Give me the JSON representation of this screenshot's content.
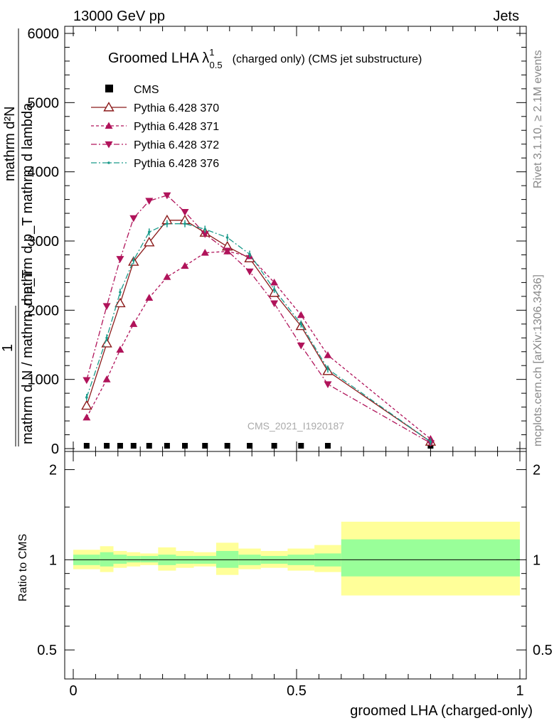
{
  "header": {
    "left": "13000 GeV pp",
    "right": "Jets"
  },
  "side_labels": {
    "rivet": "Rivet 3.1.10, ≥ 2.1M events",
    "mcplots": "mcplots.cern.ch [arXiv:1306.3436]"
  },
  "chart_data": [
    {
      "type": "line",
      "title_main": "Groomed LHA λ",
      "title_sup": "1",
      "title_sub": "0.5",
      "title_rest": "(charged only) (CMS jet substructure)",
      "ylabel_numerator": "mathrm d²N",
      "ylabel_numerator_2": "mathrm d p_T mathrm d lambda",
      "ylabel_prefix": "1",
      "ylabel_denominator": "mathrm d N / mathrm d p_T",
      "ylim": [
        0,
        6200
      ],
      "y_ticks": [
        {
          "v": 0,
          "label": "0"
        },
        {
          "v": 1000,
          "label": "1000"
        },
        {
          "v": 2000,
          "label": "2000"
        },
        {
          "v": 3000,
          "label": "3000"
        },
        {
          "v": 4000,
          "label": "4000"
        },
        {
          "v": 5000,
          "label": "5000"
        },
        {
          "v": 6000,
          "label": "6000"
        }
      ],
      "xlim": [
        0,
        1
      ],
      "watermark": "CMS_2021_I1920187",
      "legend_position": "top-left",
      "x": [
        0.03,
        0.075,
        0.105,
        0.135,
        0.17,
        0.21,
        0.25,
        0.295,
        0.345,
        0.395,
        0.45,
        0.51,
        0.57,
        0.8
      ],
      "series": [
        {
          "name": "CMS",
          "color": "#000000",
          "style": "square",
          "values": [
            0,
            0,
            0,
            0,
            0,
            0,
            0,
            0,
            0,
            0,
            0,
            0,
            0,
            0
          ]
        },
        {
          "name": "Pythia 6.428 370",
          "color": "#8b1a1a",
          "style": "open-triangle-up-solid",
          "values": [
            620,
            1520,
            2100,
            2700,
            2980,
            3300,
            3300,
            3120,
            2920,
            2750,
            2250,
            1770,
            1120,
            100
          ]
        },
        {
          "name": "Pythia 6.428 371",
          "color": "#b0135a",
          "style": "filled-triangle-up-dashed",
          "values": [
            450,
            1000,
            1430,
            1800,
            2180,
            2480,
            2640,
            2830,
            2850,
            2780,
            2400,
            1930,
            1350,
            140
          ]
        },
        {
          "name": "Pythia 6.428 372",
          "color": "#b0135a",
          "style": "filled-triangle-down-dashdot",
          "values": [
            990,
            2060,
            2740,
            3330,
            3580,
            3660,
            3420,
            3100,
            2860,
            2560,
            2100,
            1490,
            930,
            80
          ]
        },
        {
          "name": "Pythia 6.428 376",
          "color": "#1a9a8a",
          "style": "dot-dashdot",
          "values": [
            740,
            1600,
            2260,
            2720,
            3130,
            3250,
            3250,
            3170,
            3050,
            2810,
            2300,
            1800,
            1150,
            100
          ]
        }
      ]
    },
    {
      "type": "area",
      "ylabel": "Ratio to CMS",
      "xlabel": "groomed LHA (charged-only)",
      "ylim": [
        0.4,
        2.3
      ],
      "y_scale": "log",
      "y_ticks": [
        {
          "v": 0.5,
          "label": "0.5"
        },
        {
          "v": 1,
          "label": "1"
        },
        {
          "v": 2,
          "label": "2"
        }
      ],
      "x_ticks": [
        {
          "v": 0,
          "label": "0"
        },
        {
          "v": 0.5,
          "label": "0.5"
        },
        {
          "v": 1,
          "label": "1"
        }
      ],
      "bin_edges": [
        0,
        0.06,
        0.09,
        0.12,
        0.15,
        0.19,
        0.23,
        0.27,
        0.32,
        0.37,
        0.42,
        0.48,
        0.54,
        0.6,
        1.0
      ],
      "stat_band": [
        [
          0.96,
          1.04
        ],
        [
          0.95,
          1.06
        ],
        [
          0.97,
          1.04
        ],
        [
          0.98,
          1.03
        ],
        [
          0.98,
          1.03
        ],
        [
          0.96,
          1.04
        ],
        [
          0.97,
          1.03
        ],
        [
          0.97,
          1.03
        ],
        [
          0.94,
          1.07
        ],
        [
          0.96,
          1.04
        ],
        [
          0.97,
          1.03
        ],
        [
          0.96,
          1.04
        ],
        [
          0.95,
          1.05
        ],
        [
          0.88,
          1.17
        ]
      ],
      "total_band": [
        [
          0.93,
          1.08
        ],
        [
          0.91,
          1.11
        ],
        [
          0.94,
          1.07
        ],
        [
          0.95,
          1.06
        ],
        [
          0.96,
          1.05
        ],
        [
          0.92,
          1.1
        ],
        [
          0.94,
          1.07
        ],
        [
          0.95,
          1.06
        ],
        [
          0.89,
          1.14
        ],
        [
          0.93,
          1.09
        ],
        [
          0.94,
          1.07
        ],
        [
          0.92,
          1.09
        ],
        [
          0.91,
          1.12
        ],
        [
          0.76,
          1.34
        ]
      ],
      "colors": {
        "stat": "#99ff99",
        "total": "#ffff99"
      }
    }
  ]
}
